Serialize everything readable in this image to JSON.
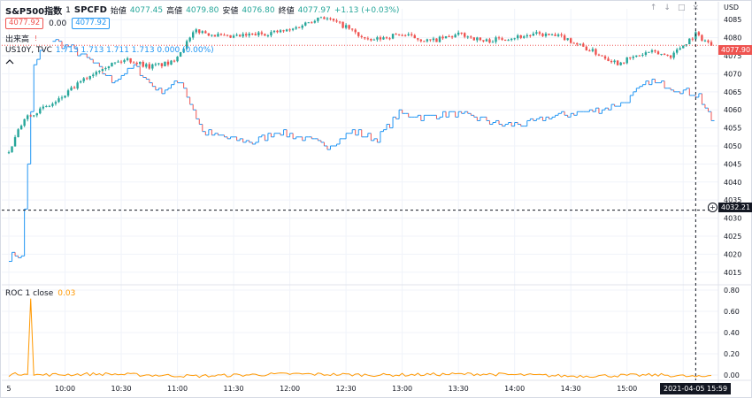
{
  "header": {
    "symbol": "S&P500指数",
    "interval": "1",
    "source": "SPCFD",
    "open_label": "始値",
    "open_value": "4077.45",
    "high_label": "高値",
    "high_value": "4079.80",
    "low_label": "安値",
    "low_value": "4076.80",
    "close_label": "終値",
    "close_value": "4077.97",
    "change": "+1.13 (+0.03%)",
    "price_tag_main": "4077.92",
    "change_small": "0.00",
    "price_tag_compare": "4077.92",
    "volume_label": "出来高",
    "compare_symbol": "US10Y, TVC",
    "compare_values": "1.713  1.713  1.711  1.713  0.000 (0.00%)",
    "collapse_icon": "chevron-up-icon"
  },
  "roc": {
    "label": "ROC 1 close",
    "value": "0.03"
  },
  "axis": {
    "currency": "USD",
    "last_price_tag": "4077.90",
    "crosshair_price_tag": "4032.21",
    "date_tag": "2021-04-05  15:59"
  },
  "colors": {
    "up": "#26a69a",
    "down": "#ef5350",
    "compare": "#2196f3",
    "roc": "#ff9800",
    "grid": "#f0f3fa"
  },
  "chart_data": {
    "type": "line",
    "title": "",
    "xlabel": "",
    "ylabel": "",
    "x_ticks": [
      "5",
      "10:00",
      "10:30",
      "11:00",
      "11:30",
      "12:00",
      "12:30",
      "13:00",
      "13:30",
      "14:00",
      "14:30",
      "15:00",
      "15:30"
    ],
    "y_ticks_main": [
      4085,
      4080,
      4075,
      4070,
      4065,
      4060,
      4055,
      4050,
      4045,
      4040,
      4035,
      4030,
      4025,
      4020,
      4015
    ],
    "y_ticks_roc": [
      "0.80",
      "0.60",
      "0.40",
      "0.20",
      "0.00"
    ],
    "ylim_main": [
      4012,
      4088
    ],
    "ylim_roc": [
      -0.05,
      0.85
    ],
    "series": [
      {
        "name": "S&P500指数",
        "kind": "candlestick",
        "anchors": [
          [
            0,
            4048
          ],
          [
            5,
            4058
          ],
          [
            10,
            4060
          ],
          [
            15,
            4062
          ],
          [
            22,
            4067
          ],
          [
            30,
            4072
          ],
          [
            38,
            4074
          ],
          [
            45,
            4072
          ],
          [
            52,
            4073
          ],
          [
            60,
            4082
          ],
          [
            70,
            4080
          ],
          [
            80,
            4081
          ],
          [
            90,
            4082
          ],
          [
            100,
            4086
          ],
          [
            108,
            4083
          ],
          [
            115,
            4079
          ],
          [
            125,
            4081
          ],
          [
            135,
            4079
          ],
          [
            145,
            4081
          ],
          [
            152,
            4079
          ],
          [
            160,
            4080
          ],
          [
            170,
            4081
          ],
          [
            178,
            4080
          ],
          [
            185,
            4077
          ],
          [
            195,
            4073
          ],
          [
            205,
            4076
          ],
          [
            212,
            4075
          ],
          [
            220,
            4081
          ],
          [
            225,
            4078
          ]
        ]
      },
      {
        "name": "US10Y, TVC",
        "kind": "step",
        "anchors": [
          [
            0,
            4019
          ],
          [
            2,
            4020
          ],
          [
            4,
            4019
          ],
          [
            8,
            4072
          ],
          [
            12,
            4080
          ],
          [
            20,
            4077
          ],
          [
            27,
            4073
          ],
          [
            33,
            4068
          ],
          [
            40,
            4072
          ],
          [
            48,
            4065
          ],
          [
            55,
            4068
          ],
          [
            62,
            4054
          ],
          [
            70,
            4052
          ],
          [
            78,
            4051
          ],
          [
            86,
            4054
          ],
          [
            94,
            4052
          ],
          [
            102,
            4050
          ],
          [
            110,
            4054
          ],
          [
            118,
            4052
          ],
          [
            125,
            4059
          ],
          [
            133,
            4058
          ],
          [
            141,
            4059
          ],
          [
            149,
            4058
          ],
          [
            157,
            4056
          ],
          [
            165,
            4056
          ],
          [
            173,
            4058
          ],
          [
            181,
            4059
          ],
          [
            189,
            4060
          ],
          [
            197,
            4062
          ],
          [
            205,
            4068
          ],
          [
            213,
            4066
          ],
          [
            221,
            4064
          ],
          [
            225,
            4057
          ]
        ]
      },
      {
        "name": "ROC 1 close",
        "kind": "line",
        "anchors": [
          [
            0,
            0.0
          ],
          [
            6,
            0.02
          ],
          [
            7,
            0.72
          ],
          [
            8,
            0.0
          ],
          [
            30,
            0.01
          ],
          [
            60,
            -0.01
          ],
          [
            90,
            0.01
          ],
          [
            120,
            0.0
          ],
          [
            150,
            0.01
          ],
          [
            180,
            -0.01
          ],
          [
            210,
            0.0
          ],
          [
            222,
            -0.02
          ],
          [
            225,
            0.0
          ]
        ]
      }
    ]
  }
}
